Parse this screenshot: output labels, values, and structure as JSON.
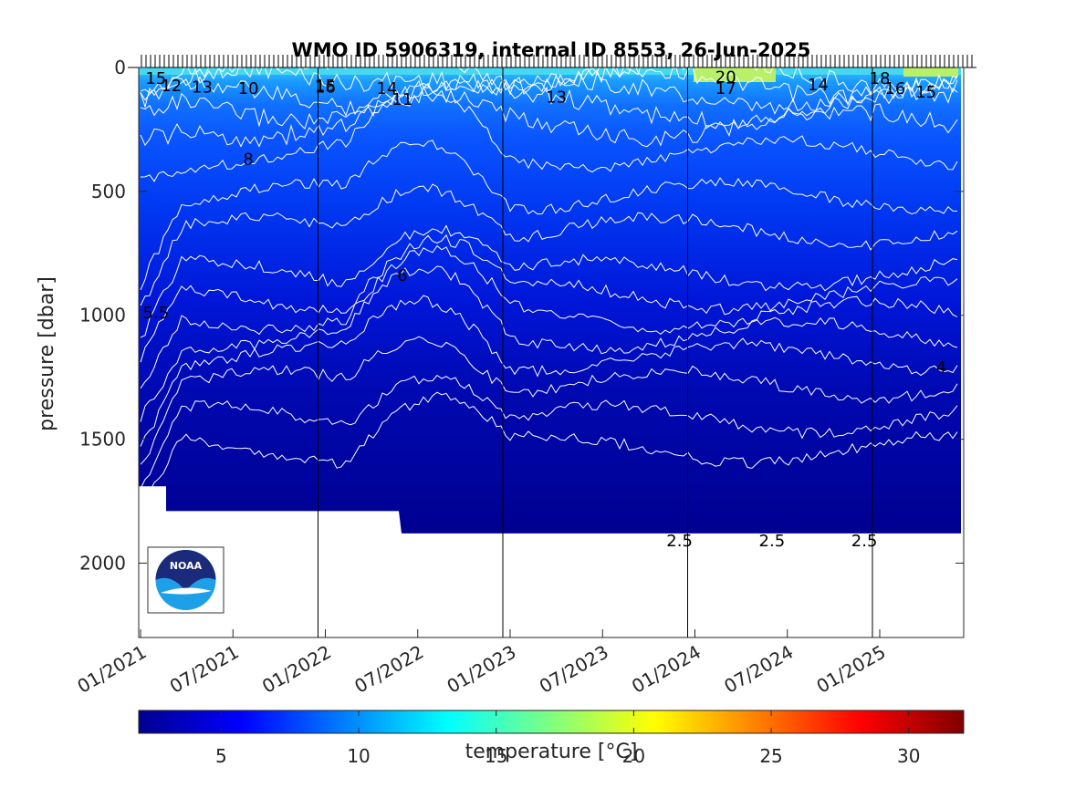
{
  "chart_data": {
    "type": "heatmap",
    "title": "WMO ID 5906319, internal ID 8553, 26-Jun-2025",
    "ylabel": "pressure [dbar]",
    "xlabel": "",
    "y_reversed": true,
    "ylim": [
      0,
      2300
    ],
    "yticks": [
      0,
      500,
      1000,
      1500,
      2000
    ],
    "xticks": [
      "01/2021",
      "07/2021",
      "01/2022",
      "07/2022",
      "01/2023",
      "07/2023",
      "01/2024",
      "07/2024",
      "01/2025"
    ],
    "year_lines": [
      "01/2022",
      "01/2023",
      "01/2024",
      "01/2025"
    ],
    "colorbar": {
      "label": "temperature [°C]",
      "range": [
        2,
        32
      ],
      "ticks": [
        5,
        10,
        15,
        20,
        25,
        30
      ],
      "colormap": "jet"
    },
    "contour_levels": [
      2.5,
      3,
      4,
      4.5,
      5,
      5.5,
      6,
      7,
      8,
      9,
      10,
      11,
      12,
      13,
      14,
      15,
      16,
      17,
      18,
      20
    ],
    "contour_labels": [
      {
        "text": "15",
        "date": "02/2021",
        "p": 15
      },
      {
        "text": "12",
        "date": "03/2021",
        "p": 45
      },
      {
        "text": "13",
        "date": "05/2021",
        "p": 50
      },
      {
        "text": "10",
        "date": "08/2021",
        "p": 55
      },
      {
        "text": "15",
        "date": "01/2022",
        "p": 45
      },
      {
        "text": "16",
        "date": "01/2022",
        "p": 50
      },
      {
        "text": "14",
        "date": "05/2022",
        "p": 55
      },
      {
        "text": "11",
        "date": "06/2022",
        "p": 100
      },
      {
        "text": "8",
        "date": "08/2021",
        "p": 340
      },
      {
        "text": "6",
        "date": "06/2022",
        "p": 810
      },
      {
        "text": "5.5",
        "date": "02/2021",
        "p": 960
      },
      {
        "text": "13",
        "date": "04/2023",
        "p": 90
      },
      {
        "text": "20",
        "date": "03/2024",
        "p": 10
      },
      {
        "text": "17",
        "date": "03/2024",
        "p": 55
      },
      {
        "text": "14",
        "date": "09/2024",
        "p": 40
      },
      {
        "text": "18",
        "date": "01/2025",
        "p": 15
      },
      {
        "text": "16",
        "date": "02/2025",
        "p": 55
      },
      {
        "text": "15",
        "date": "04/2025",
        "p": 70
      },
      {
        "text": "2.5",
        "date": "12/2023",
        "p": 1880
      },
      {
        "text": "2.5",
        "date": "06/2024",
        "p": 1880
      },
      {
        "text": "2.5",
        "date": "12/2024",
        "p": 1880
      },
      {
        "text": "4",
        "date": "05/2025",
        "p": 1180
      }
    ],
    "grid": false,
    "legend": "none"
  },
  "logo": {
    "text": "NOAA"
  }
}
